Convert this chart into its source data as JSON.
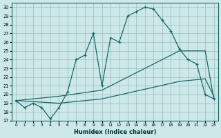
{
  "xlabel": "Humidex (Indice chaleur)",
  "ylabel": "",
  "xlim": [
    -0.5,
    23.5
  ],
  "ylim": [
    17,
    30.5
  ],
  "yticks": [
    17,
    18,
    19,
    20,
    21,
    22,
    23,
    24,
    25,
    26,
    27,
    28,
    29,
    30
  ],
  "xticks": [
    0,
    1,
    2,
    3,
    4,
    5,
    6,
    7,
    8,
    9,
    10,
    11,
    12,
    13,
    14,
    15,
    16,
    17,
    18,
    19,
    20,
    21,
    22,
    23
  ],
  "bg_color": "#cce8e8",
  "line_color": "#1a6666",
  "grid_color": "#99bbbb",
  "line1_x": [
    0,
    1,
    2,
    3,
    4,
    5,
    6,
    7,
    8,
    9,
    10,
    11,
    12,
    13,
    14,
    15,
    16,
    17,
    18,
    19,
    20,
    21,
    22,
    23
  ],
  "line1_y": [
    19.3,
    18.5,
    19.0,
    18.5,
    17.2,
    18.5,
    20.3,
    24.0,
    24.5,
    27.0,
    21.0,
    26.5,
    26.0,
    29.0,
    29.5,
    30.0,
    29.8,
    28.5,
    27.3,
    25.2,
    24.0,
    23.5,
    20.0,
    19.5
  ],
  "line2_x": [
    0,
    5,
    10,
    19,
    22,
    23
  ],
  "line2_y": [
    19.3,
    19.8,
    20.5,
    25.0,
    25.0,
    19.5
  ],
  "line3_x": [
    0,
    5,
    10,
    19,
    22,
    23
  ],
  "line3_y": [
    19.3,
    19.0,
    19.5,
    21.5,
    21.8,
    19.8
  ]
}
